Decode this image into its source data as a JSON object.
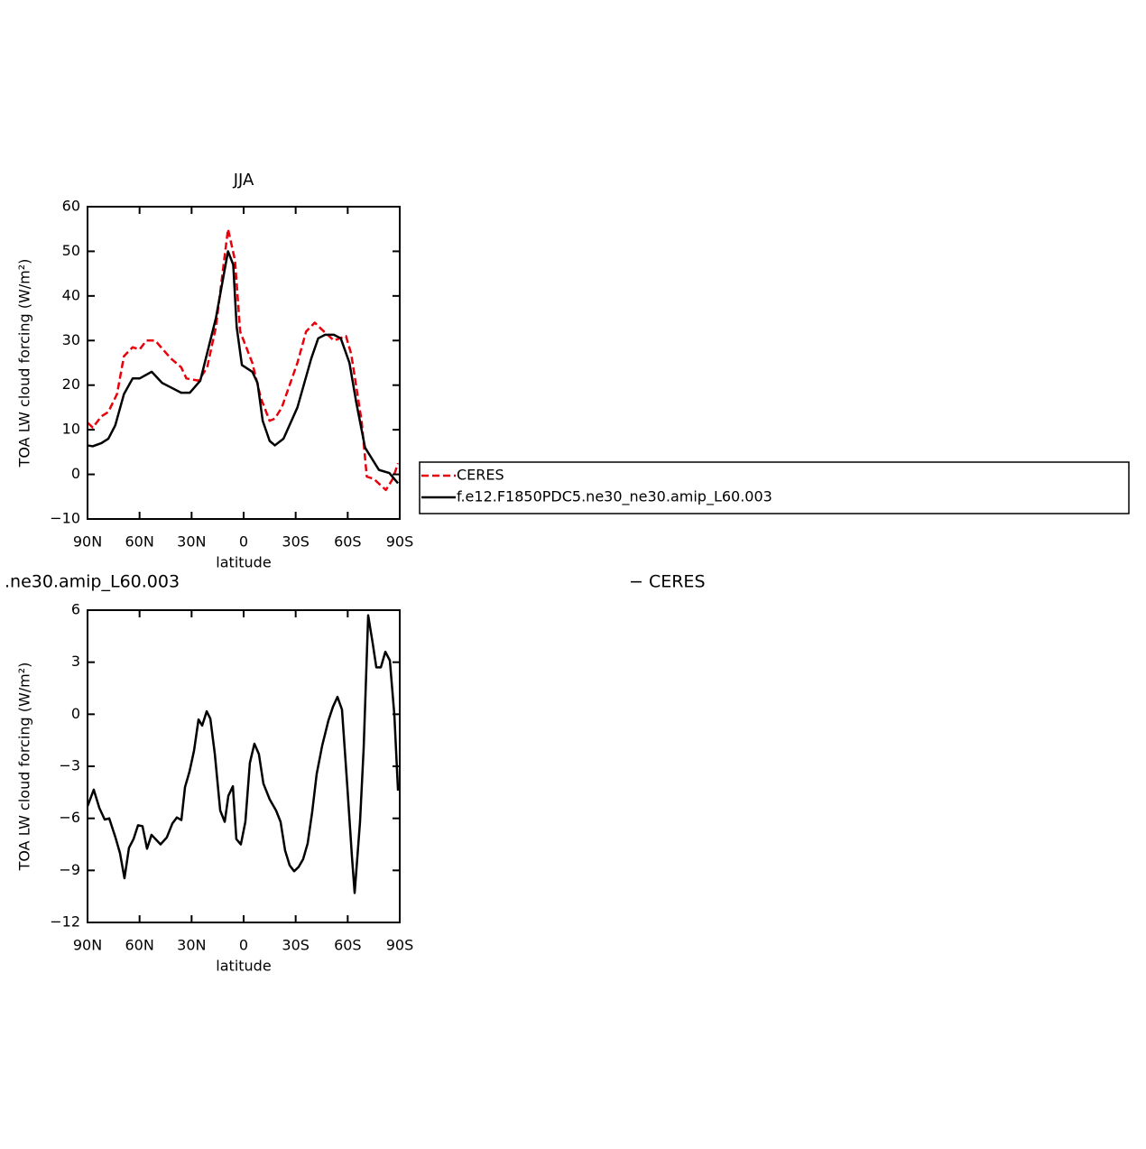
{
  "chart_data": [
    {
      "type": "line",
      "title": "JJA",
      "ylabel": "TOA LW cloud forcing (W/m²)",
      "xlabel": "latitude",
      "xlim": [
        90,
        -90
      ],
      "xticks": [
        {
          "value": 90,
          "label": "90N"
        },
        {
          "value": 60,
          "label": "60N"
        },
        {
          "value": 30,
          "label": "30N"
        },
        0,
        {
          "value": -30,
          "label": "30S"
        },
        {
          "value": -60,
          "label": "60S"
        },
        {
          "value": -90,
          "label": "90S"
        }
      ],
      "ylim": [
        -10,
        60
      ],
      "yticks": [
        {
          "value": -10,
          "label": "−10"
        },
        0,
        10,
        20,
        30,
        40,
        50,
        60
      ],
      "legend": "right",
      "series": [
        {
          "name": "CERES",
          "color": "#e8000b",
          "dash": "dashed",
          "x": [
            90,
            87,
            82,
            78,
            73,
            69,
            64,
            60,
            56,
            51,
            42,
            36,
            33,
            26,
            21,
            16,
            9,
            5,
            2,
            -5,
            -10,
            -15,
            -18,
            -22,
            -31,
            -36,
            -41,
            -45,
            -52,
            -59,
            -62,
            -68,
            -71,
            -75,
            -82,
            -86,
            -89
          ],
          "values": [
            11.6,
            10.5,
            13,
            14,
            18,
            26.5,
            28.5,
            28,
            30,
            30,
            26,
            24,
            21.5,
            21,
            24,
            33,
            55,
            48,
            32,
            25,
            17,
            12,
            12.5,
            15,
            25,
            32,
            34,
            32.5,
            30,
            31,
            27,
            12,
            -0.5,
            -1,
            -3.5,
            -1,
            2.5
          ]
        },
        {
          "name": "f.e12.F1850PDC5.ne30_ne30.amip_L60.003",
          "color": "#000000",
          "dash": "solid",
          "x": [
            90,
            87,
            82,
            78,
            74,
            69,
            64,
            60,
            53,
            47,
            42,
            36,
            31,
            25,
            16,
            9,
            6,
            4,
            1,
            -3,
            -5,
            -8,
            -11,
            -15,
            -18,
            -23,
            -31,
            -39,
            -43,
            -47,
            -52,
            -56,
            -61,
            -65,
            -70,
            -78,
            -84,
            -89
          ],
          "values": [
            6.5,
            6.3,
            7,
            8,
            11,
            18,
            21.5,
            21.5,
            23,
            20.5,
            19.5,
            18.3,
            18.3,
            21,
            35,
            50,
            47,
            33,
            24.5,
            23.5,
            23,
            20.5,
            12,
            7.5,
            6.5,
            8,
            15,
            26,
            30.5,
            31.3,
            31.3,
            30.5,
            25,
            16,
            6,
            1,
            0.3,
            -2
          ]
        }
      ]
    },
    {
      "type": "line",
      "left_title": ".ne30.amip_L60.003",
      "right_title": "− CERES",
      "ylabel": "TOA LW cloud forcing (W/m²)",
      "xlabel": "latitude",
      "xlim": [
        90,
        -90
      ],
      "xticks": [
        {
          "value": 90,
          "label": "90N"
        },
        {
          "value": 60,
          "label": "60N"
        },
        {
          "value": 30,
          "label": "30N"
        },
        0,
        {
          "value": -30,
          "label": "30S"
        },
        {
          "value": -60,
          "label": "60S"
        },
        {
          "value": -90,
          "label": "90S"
        }
      ],
      "ylim": [
        -12,
        6
      ],
      "yticks": [
        {
          "value": -12,
          "label": "−12"
        },
        {
          "value": -9,
          "label": "−9"
        },
        {
          "value": -6,
          "label": "−6"
        },
        {
          "value": -3,
          "label": "−3"
        },
        0,
        3,
        6
      ],
      "series": [
        {
          "color": "#000000",
          "dash": "solid",
          "x": [
            90,
            86.4,
            83.2,
            80.1,
            77.5,
            73.9,
            71.3,
            68.7,
            66.1,
            63.5,
            60.9,
            58.3,
            55.7,
            53.1,
            47.9,
            44.3,
            41.1,
            38.5,
            35.9,
            33.8,
            31.2,
            28.6,
            26,
            23.9,
            21.3,
            19.2,
            16.6,
            13.5,
            10.9,
            8.8,
            6.2,
            4.2,
            1.6,
            -1,
            -3.6,
            -6.2,
            -8.8,
            -11.4,
            -15,
            -18.7,
            -21.3,
            -23.9,
            -26.5,
            -29.1,
            -31.7,
            -34.3,
            -36.9,
            -39.5,
            -42.1,
            -45.3,
            -48.9,
            -51.5,
            -54.1,
            -56.7,
            -59.8,
            -62.4,
            -64,
            -67.1,
            -69.2,
            -71.8,
            -74.4,
            -76.5,
            -79.1,
            -81.7,
            -84.3,
            -86.9,
            -89
          ],
          "values": [
            -5.3,
            -4.35,
            -5.4,
            -6.07,
            -6,
            -7.1,
            -8,
            -9.45,
            -7.7,
            -7.2,
            -6.4,
            -6.45,
            -7.75,
            -6.95,
            -7.5,
            -7.1,
            -6.3,
            -5.95,
            -6.1,
            -4.2,
            -3.3,
            -2.1,
            -0.3,
            -0.65,
            0.17,
            -0.25,
            -2.3,
            -5.55,
            -6.2,
            -4.7,
            -4.15,
            -7.2,
            -7.5,
            -6.2,
            -2.8,
            -1.7,
            -2.3,
            -4,
            -4.9,
            -5.55,
            -6.2,
            -7.85,
            -8.7,
            -9.05,
            -8.8,
            -8.35,
            -7.45,
            -5.65,
            -3.45,
            -1.8,
            -0.35,
            0.43,
            1,
            0.27,
            -4.2,
            -8.15,
            -10.3,
            -6.2,
            -1.95,
            5.7,
            4.1,
            2.7,
            2.7,
            3.6,
            3.1,
            -0.05,
            -4.4
          ]
        }
      ]
    }
  ]
}
